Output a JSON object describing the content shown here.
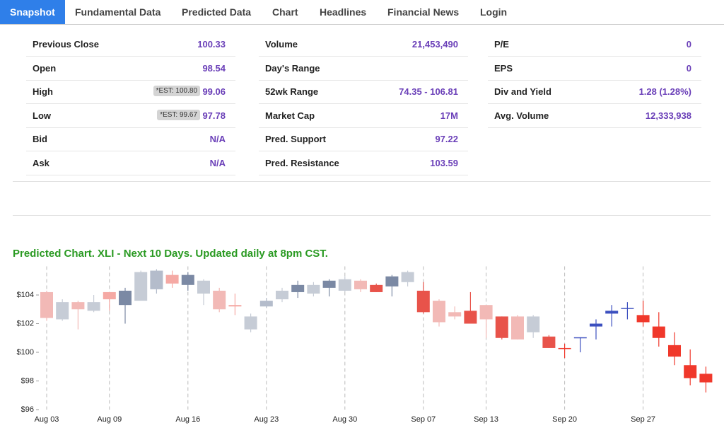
{
  "tabs": [
    "Snapshot",
    "Fundamental Data",
    "Predicted Data",
    "Chart",
    "Headlines",
    "Financial News",
    "Login"
  ],
  "stats": [
    [
      {
        "label": "Previous Close",
        "value": "100.33"
      },
      {
        "label": "Open",
        "value": "98.54"
      },
      {
        "label": "High",
        "badge": "*EST: 100.80",
        "value": "99.06"
      },
      {
        "label": "Low",
        "badge": "*EST: 99.67",
        "value": "97.78"
      },
      {
        "label": "Bid",
        "value": "N/A"
      },
      {
        "label": "Ask",
        "value": "N/A"
      }
    ],
    [
      {
        "label": "Volume",
        "value": "21,453,490"
      },
      {
        "label": "Day's Range"
      },
      {
        "label": "52wk Range",
        "value": "74.35 - 106.81"
      },
      {
        "label": "Market Cap",
        "value": "17M"
      },
      {
        "label": "Pred. Support",
        "value": "97.22"
      },
      {
        "label": "Pred. Resistance",
        "value": "103.59"
      }
    ],
    [
      {
        "label": "P/E",
        "value": "0"
      },
      {
        "label": "EPS",
        "value": "0"
      },
      {
        "label": "Div and Yield",
        "value": "1.28 (1.28%)"
      },
      {
        "label": "Avg. Volume",
        "value": "12,333,938"
      }
    ]
  ],
  "chart_data": {
    "type": "candlestick",
    "title": "Predicted Chart. XLI - Next 10 Days. Updated daily at 8pm CST.",
    "categories": [
      "Aug 03",
      null,
      null,
      null,
      "Aug 09",
      null,
      null,
      null,
      null,
      "Aug 16",
      null,
      null,
      null,
      null,
      "Aug 23",
      null,
      null,
      null,
      null,
      "Aug 30",
      null,
      null,
      null,
      null,
      "Sep 07",
      null,
      null,
      null,
      "Sep 13",
      null,
      null,
      null,
      null,
      "Sep 20",
      null,
      null,
      null,
      null,
      "Sep 27",
      null,
      null,
      null,
      null
    ],
    "open": [
      104.2,
      102.3,
      103.5,
      102.9,
      104.2,
      103.3,
      103.6,
      104.4,
      105.4,
      104.7,
      104.1,
      104.3,
      103.3,
      101.6,
      103.2,
      103.7,
      104.2,
      104.7,
      104.5,
      104.3,
      105.0,
      104.7,
      104.6,
      104.9,
      104.3,
      103.6,
      102.8,
      102.9,
      103.3,
      102.5,
      102.5,
      101.4,
      101.1,
      100.3,
      101.0,
      101.8,
      102.7,
      103.05,
      102.6,
      101.8,
      100.5,
      99.1,
      98.5
    ],
    "high": [
      104.3,
      103.7,
      103.6,
      104.0,
      104.2,
      104.5,
      105.7,
      105.8,
      105.7,
      105.6,
      105.1,
      104.5,
      104.1,
      102.7,
      103.8,
      104.5,
      105.0,
      104.9,
      105.1,
      105.3,
      105.1,
      104.8,
      105.4,
      105.7,
      104.9,
      103.7,
      103.2,
      104.2,
      103.3,
      102.5,
      102.6,
      102.6,
      101.2,
      100.6,
      101.05,
      102.3,
      103.3,
      103.5,
      103.6,
      102.8,
      101.4,
      100.2,
      99.0
    ],
    "low": [
      102.2,
      102.2,
      101.6,
      102.8,
      102.9,
      102.0,
      103.6,
      104.1,
      104.5,
      104.3,
      103.3,
      102.8,
      102.6,
      101.4,
      103.1,
      103.5,
      103.8,
      103.9,
      103.9,
      104.2,
      104.2,
      104.2,
      103.9,
      104.6,
      102.7,
      101.8,
      102.3,
      102.0,
      101.0,
      100.9,
      100.9,
      101.0,
      100.3,
      99.6,
      100.0,
      100.9,
      101.8,
      102.3,
      101.8,
      100.4,
      99.1,
      97.7,
      97.2
    ],
    "close": [
      102.4,
      103.5,
      103.0,
      103.5,
      103.7,
      104.3,
      105.6,
      105.7,
      104.8,
      105.4,
      105.0,
      103.0,
      103.2,
      102.5,
      103.6,
      104.3,
      104.7,
      104.1,
      105.0,
      105.1,
      104.4,
      104.2,
      105.3,
      105.6,
      102.8,
      102.1,
      102.5,
      102.0,
      102.3,
      101.0,
      100.9,
      102.5,
      100.3,
      100.25,
      101.05,
      102.0,
      102.9,
      103.1,
      102.1,
      101.0,
      99.7,
      98.2,
      97.9
    ],
    "colors": [
      "#f2b9b6",
      "#c6ccd6",
      "#f2b9b6",
      "#c6ccd6",
      "#f5a9a4",
      "#7b89a4",
      "#c6ccd6",
      "#b4bccb",
      "#f5a9a4",
      "#7b89a4",
      "#c6ccd6",
      "#f2b9b6",
      "#f5a9a4",
      "#c6ccd6",
      "#b4bccb",
      "#c6ccd6",
      "#7b89a4",
      "#c6ccd6",
      "#7b89a4",
      "#c6ccd6",
      "#f2b9b6",
      "#e8534a",
      "#7b89a4",
      "#c6ccd6",
      "#e8534a",
      "#f2b9b6",
      "#f2b9b6",
      "#e8534a",
      "#f2b9b6",
      "#e8534a",
      "#f2b9b6",
      "#c6ccd6",
      "#e8534a",
      "#f0382b",
      "#3b4fbf",
      "#3b4fbf",
      "#3b4fbf",
      "#3b4fbf",
      "#f0382b",
      "#f0382b",
      "#f0382b",
      "#f0382b",
      "#f0382b"
    ],
    "ylim": [
      96,
      106
    ],
    "yticks": [
      {
        "value": 96,
        "label": "$96"
      },
      {
        "value": 98,
        "label": "$98"
      },
      {
        "value": 100,
        "label": "$100"
      },
      {
        "value": 102,
        "label": "$102"
      },
      {
        "value": 104,
        "label": "$104"
      }
    ]
  }
}
